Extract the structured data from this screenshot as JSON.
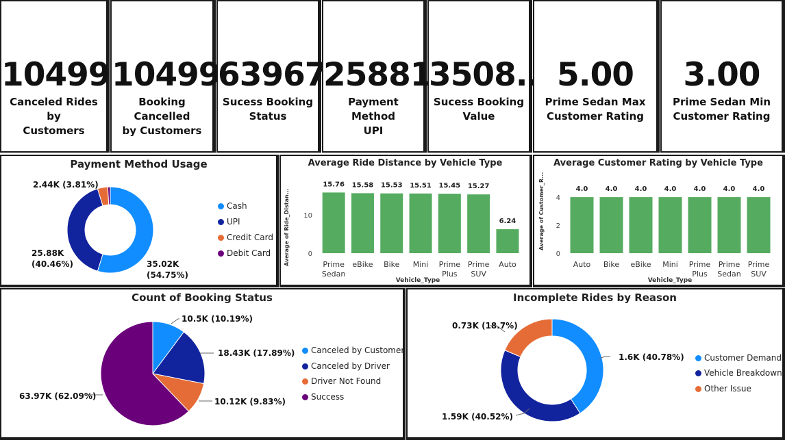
{
  "kpis": [
    {
      "value": "10499",
      "label_1": "Canceled Rides by",
      "label_2": "Customers"
    },
    {
      "value": "10499",
      "label_1": "Booking Cancelled",
      "label_2": "by Customers"
    },
    {
      "value": "63967",
      "label_1": "Sucess Booking",
      "label_2": "Status"
    },
    {
      "value": "25881",
      "label_1": "Payment Method",
      "label_2": "UPI"
    },
    {
      "value": "3508...",
      "label_1": "Sucess Booking",
      "label_2": "Value"
    },
    {
      "value": "5.00",
      "label_1": "Prime Sedan Max",
      "label_2": "Customer Rating"
    },
    {
      "value": "3.00",
      "label_1": "Prime Sedan Min",
      "label_2": "Customer Rating"
    }
  ],
  "payment": {
    "title": "Payment Method Usage",
    "labels": {
      "credit": "2.44K (3.81%)",
      "upi_1": "25.88K",
      "upi_2": "(40.46%)",
      "cash_1": "35.02K",
      "cash_2": "(54.75%)"
    }
  },
  "distance": {
    "title": "Average Ride Distance by Vehicle Type",
    "ylabel": "Average of Ride_Distan...",
    "xlabel": "Vehicle_Type"
  },
  "rating": {
    "title": "Average Customer Rating by Vehicle Type",
    "ylabel": "Average of Customer_R...",
    "xlabel": "Vehicle_Type"
  },
  "booking": {
    "title": "Count of Booking Status",
    "labels": {
      "cust": "10.5K (10.19%)",
      "driver": "18.43K (17.89%)",
      "notfound": "10.12K (9.83%)",
      "success": "63.97K (62.09%)"
    }
  },
  "incomplete": {
    "title": "Incomplete Rides by Reason",
    "labels": {
      "demand": "1.6K (40.78%)",
      "breakdown": "1.59K (40.52%)",
      "other": "0.73K (18.7%)"
    }
  },
  "colors": {
    "blue": "#118DFF",
    "navy": "#12239E",
    "orange": "#E66C37",
    "purple": "#6B007B",
    "green": "#55AB5F"
  },
  "chart_data": [
    {
      "type": "pie",
      "title": "Payment Method Usage",
      "categories": [
        "Cash",
        "UPI",
        "Credit Card",
        "Debit Card"
      ],
      "values": [
        35020,
        25880,
        2440,
        612
      ],
      "percent": [
        54.75,
        40.46,
        3.81,
        0.98
      ],
      "style": "donut",
      "legend": "right"
    },
    {
      "type": "bar",
      "title": "Average Ride Distance by Vehicle Type",
      "categories": [
        "Prime Sedan",
        "eBike",
        "Bike",
        "Mini",
        "Prime Plus",
        "Prime SUV",
        "Auto"
      ],
      "values": [
        15.76,
        15.58,
        15.53,
        15.51,
        15.45,
        15.27,
        6.24
      ],
      "data_labels": [
        "15.76",
        "15.58",
        "15.53",
        "15.51",
        "15.45",
        "15.27",
        "6.24"
      ],
      "xlabel": "Vehicle_Type",
      "ylabel": "Average of Ride_Distan...",
      "ylim": [
        0,
        16
      ],
      "yticks": [
        0,
        10
      ]
    },
    {
      "type": "bar",
      "title": "Average Customer Rating by Vehicle Type",
      "categories": [
        "Auto",
        "Bike",
        "eBike",
        "Mini",
        "Prime Plus",
        "Prime Sedan",
        "Prime SUV"
      ],
      "values": [
        4.0,
        4.0,
        4.0,
        4.0,
        4.0,
        4.0,
        4.0
      ],
      "data_labels": [
        "4.0",
        "4.0",
        "4.0",
        "4.0",
        "4.0",
        "4.0",
        "4.0"
      ],
      "xlabel": "Vehicle_Type",
      "ylabel": "Average of Customer_R...",
      "ylim": [
        0,
        4.2
      ],
      "yticks": [
        0,
        2,
        4
      ]
    },
    {
      "type": "pie",
      "title": "Count of Booking Status",
      "categories": [
        "Canceled by Customer",
        "Canceled by Driver",
        "Driver Not Found",
        "Success"
      ],
      "values": [
        10500,
        18430,
        10120,
        63970
      ],
      "percent": [
        10.19,
        17.89,
        9.83,
        62.09
      ],
      "legend": "right"
    },
    {
      "type": "pie",
      "title": "Incomplete Rides by Reason",
      "categories": [
        "Customer Demand",
        "Vehicle Breakdown",
        "Other Issue"
      ],
      "values": [
        1600,
        1590,
        730
      ],
      "percent": [
        40.78,
        40.52,
        18.7
      ],
      "style": "donut",
      "legend": "right"
    }
  ]
}
